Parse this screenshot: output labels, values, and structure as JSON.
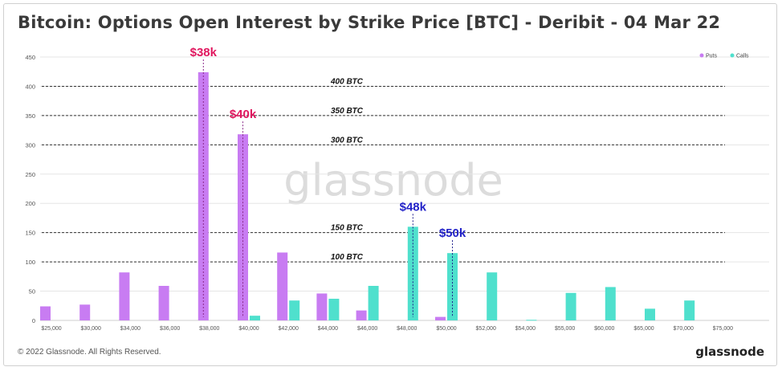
{
  "title": "Bitcoin: Options Open Interest by Strike Price [BTC] - Deribit - 04 Mar 22",
  "watermark": "glassnode",
  "footer": {
    "copyright": "© 2022 Glassnode. All Rights Reserved.",
    "brand": "glassnode"
  },
  "colors": {
    "puts": "#c87cf2",
    "calls": "#4fe0cd",
    "put_annotation": "#e0185f",
    "call_annotation": "#2323c8",
    "reference_line": "#333333",
    "grid": "#e5e5e5"
  },
  "chart_data": {
    "type": "bar",
    "categories": [
      "$25,000",
      "$30,000",
      "$34,000",
      "$36,000",
      "$38,000",
      "$40,000",
      "$42,000",
      "$44,000",
      "$46,000",
      "$48,000",
      "$50,000",
      "$52,000",
      "$54,000",
      "$55,000",
      "$60,000",
      "$65,000",
      "$70,000",
      "$75,000"
    ],
    "series": [
      {
        "name": "Puts",
        "values": [
          24,
          27,
          82,
          59,
          424,
          318,
          116,
          46,
          17,
          0,
          6,
          0,
          0,
          0,
          0,
          0,
          0,
          0
        ]
      },
      {
        "name": "Calls",
        "values": [
          0,
          0,
          0,
          0,
          0,
          8,
          34,
          37,
          59,
          160,
          115,
          82,
          1,
          47,
          57,
          20,
          34,
          0
        ]
      }
    ],
    "yticks": [
      0,
      50,
      100,
      150,
      200,
      250,
      300,
      350,
      400,
      450
    ],
    "ylim": [
      0,
      450
    ],
    "legend_position": "top-right",
    "grid": true,
    "reference_lines": [
      {
        "value": 400,
        "label": "400 BTC"
      },
      {
        "value": 350,
        "label": "350 BTC"
      },
      {
        "value": 300,
        "label": "300 BTC"
      },
      {
        "value": 150,
        "label": "150 BTC"
      },
      {
        "value": 100,
        "label": "100 BTC"
      }
    ],
    "annotations": [
      {
        "label": "$38k",
        "category_index": 4,
        "series": "Puts",
        "kind": "put"
      },
      {
        "label": "$40k",
        "category_index": 5,
        "series": "Puts",
        "kind": "put"
      },
      {
        "label": "$48k",
        "category_index": 9,
        "series": "Calls",
        "kind": "call"
      },
      {
        "label": "$50k",
        "category_index": 10,
        "series": "Calls",
        "kind": "call"
      }
    ]
  }
}
